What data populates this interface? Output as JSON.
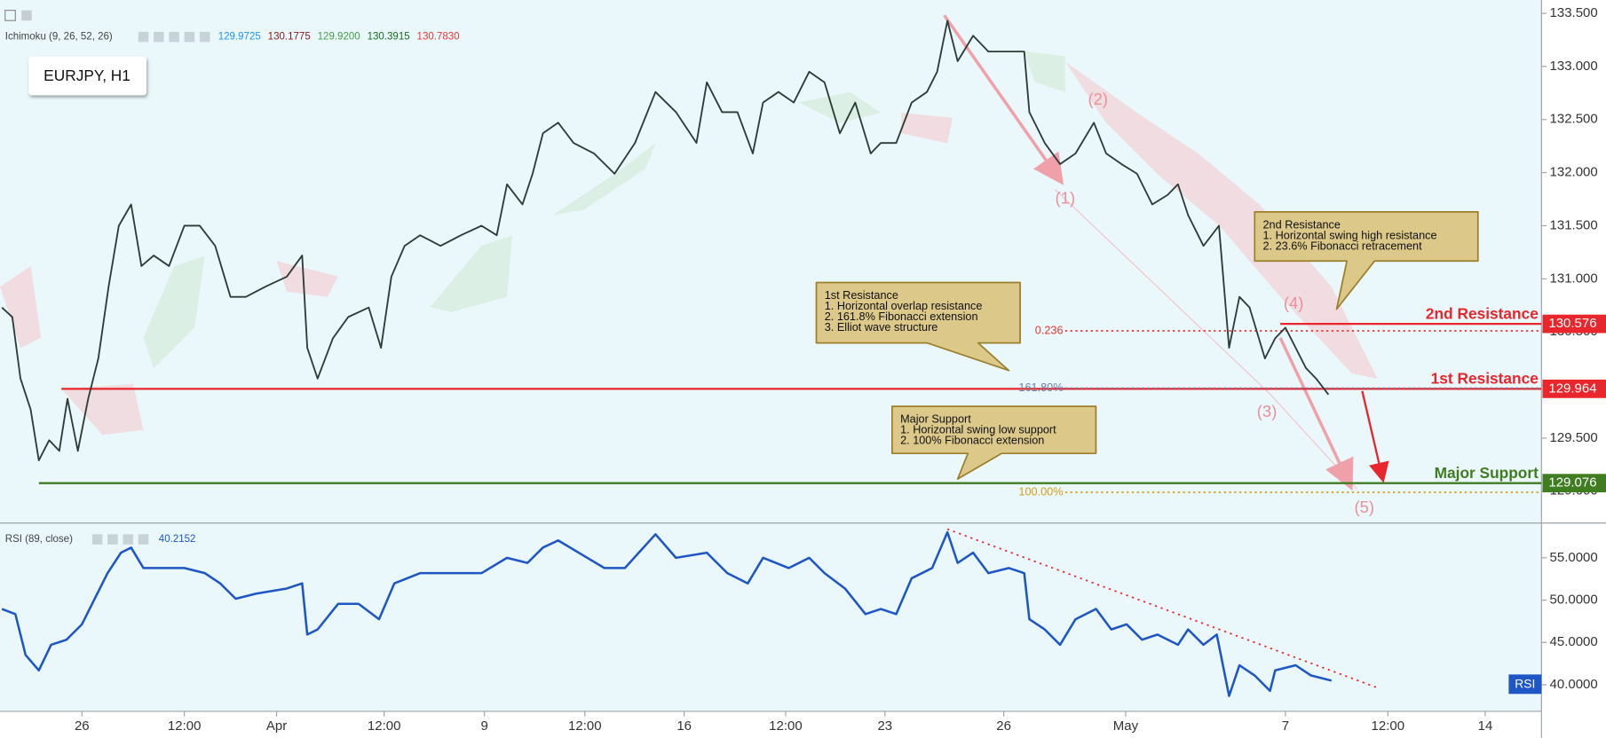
{
  "header": {
    "symbol": "EURJPY, H1"
  },
  "chart_data": [
    {
      "type": "line",
      "indicator": "Ichimoku (9, 26, 52, 26)",
      "indicator_values": [
        "129.9725",
        "130.1775",
        "129.9200",
        "130.3915",
        "130.7830"
      ],
      "indicator_colors": [
        "#2196f3",
        "#8b1a1a",
        "#43a047",
        "#1b6e1b",
        "#e53935"
      ],
      "color": "#2e3b38",
      "x": [
        -48.8,
        -42.5,
        -37.5,
        -31.3,
        -26.3,
        -20,
        -13.8,
        -8.8,
        -2.5,
        3.8,
        10,
        16.3,
        22.5,
        30,
        36.3,
        43.8,
        53.1,
        62.5,
        71.9,
        81.3,
        90.6,
        100,
        112.5,
        125,
        134.4,
        137.5,
        143.8,
        153.1,
        162.5,
        175,
        182.5,
        188.8,
        196.9,
        206.3,
        218.8,
        231.3,
        243.8,
        253.1,
        259.4,
        268.8,
        275,
        281.3,
        290.6,
        300,
        312.5,
        325,
        337.5,
        350,
        362.5,
        375,
        381.3,
        390.6,
        400,
        409.4,
        415.6,
        425,
        434.4,
        443.8,
        453.1,
        462.5,
        471.9,
        481.3,
        487.5,
        496.9,
        506.3,
        515.6,
        521.9,
        528.1,
        534.4,
        543.8,
        553.1,
        565.6,
        575,
        578.1,
        587.5,
        596.9,
        606.3,
        617.5,
        625,
        634.4,
        643.8,
        653.1,
        662.5,
        668.8,
        675,
        684.4,
        693.8,
        700,
        706.3,
        712.5,
        721.9,
        728.1,
        734.4,
        740.6,
        746.9,
        753.1,
        760.6
      ],
      "values": [
        130.73,
        130.64,
        130.06,
        129.77,
        129.29,
        129.48,
        129.38,
        129.87,
        129.38,
        129.87,
        130.25,
        130.93,
        131.5,
        131.7,
        131.12,
        131.22,
        131.12,
        131.5,
        131.5,
        131.31,
        130.83,
        130.83,
        130.93,
        131.02,
        131.22,
        130.35,
        130.06,
        130.44,
        130.64,
        130.73,
        130.35,
        131.02,
        131.31,
        131.41,
        131.31,
        131.41,
        131.5,
        131.41,
        131.89,
        131.7,
        131.99,
        132.37,
        132.47,
        132.28,
        132.18,
        131.99,
        132.28,
        132.76,
        132.57,
        132.28,
        132.85,
        132.57,
        132.57,
        132.18,
        132.66,
        132.76,
        132.66,
        132.95,
        132.85,
        132.37,
        132.66,
        132.18,
        132.28,
        132.28,
        132.66,
        132.76,
        132.95,
        133.43,
        133.05,
        133.29,
        133.14,
        133.14,
        133.14,
        132.57,
        132.28,
        132.08,
        132.18,
        132.47,
        132.18,
        132.08,
        131.99,
        131.7,
        131.79,
        131.89,
        131.6,
        131.31,
        131.5,
        130.35,
        130.83,
        130.73,
        130.25,
        130.44,
        130.54,
        130.35,
        130.16,
        130.06,
        129.91
      ],
      "xlim": [
        -50,
        890
      ],
      "ylim": [
        128.71,
        133.625
      ],
      "yticks": [
        {
          "value": 133.5,
          "label": "133.500"
        },
        {
          "value": 133,
          "label": "133.000"
        },
        {
          "value": 132.5,
          "label": "132.500"
        },
        {
          "value": 132,
          "label": "132.000"
        },
        {
          "value": 131.5,
          "label": "131.500"
        },
        {
          "value": 131,
          "label": "131.000"
        },
        {
          "value": 130.5,
          "label": "130.500"
        },
        {
          "value": 130,
          "label": "130.000"
        },
        {
          "value": 129.5,
          "label": "129.500"
        },
        {
          "value": 129,
          "label": "129.000"
        }
      ],
      "levels": [
        {
          "label": "2nd Resistance",
          "value": 130.576,
          "color": "#e8262b"
        },
        {
          "label": "1st Resistance",
          "value": 129.964,
          "color": "#e8262b"
        },
        {
          "label": "Major Support",
          "value": 129.076,
          "color": "#3f7d20"
        }
      ],
      "fib_levels": [
        {
          "label": "0.236",
          "value": 130.51,
          "color": "#e53935"
        },
        {
          "label": "161.80%",
          "value": 129.97,
          "color": "#6a7fa8"
        },
        {
          "label": "100.00%",
          "value": 128.99,
          "color": "#d4a017"
        }
      ],
      "waves": [
        {
          "label": "(1)",
          "x": 600,
          "y": 131.75
        },
        {
          "label": "(2)",
          "x": 620,
          "y": 132.68
        },
        {
          "label": "(3)",
          "x": 723.1,
          "y": 129.74
        },
        {
          "label": "(4)",
          "x": 739.4,
          "y": 130.76
        },
        {
          "label": "(5)",
          "x": 782.5,
          "y": 128.84
        }
      ],
      "callouts": [
        {
          "lines": [
            "1st Resistance",
            "1. Horizontal overlap resistance",
            "2. 161.8% Fibonacci extension",
            "3. Elliot wave structure"
          ]
        },
        {
          "lines": [
            "2nd Resistance",
            "1. Horizontal swing high resistance",
            "2. 23.6% Fibonacci retracement"
          ]
        },
        {
          "lines": [
            "Major Support",
            "1. Horizontal swing low support",
            "2. 100% Fibonacci extension"
          ]
        }
      ]
    },
    {
      "type": "line",
      "indicator": "RSI (89, close)",
      "last_value": 40.2152,
      "badge": "RSI",
      "color": "#1e56c6",
      "x": [
        -48.8,
        -40.6,
        -34.4,
        -26.3,
        -18.8,
        -9.4,
        0,
        9.4,
        15.6,
        23.8,
        30,
        37.5,
        50,
        62.5,
        75,
        84.4,
        93.8,
        106.3,
        125,
        134.4,
        137.5,
        143.8,
        156.3,
        168.8,
        181.3,
        190.6,
        206.3,
        225,
        243.8,
        259.4,
        271.9,
        281.3,
        290.6,
        303.1,
        318.8,
        331.3,
        350,
        362.5,
        381.3,
        393.8,
        406.3,
        415.6,
        431.3,
        443.8,
        453.1,
        465.6,
        478.1,
        487.5,
        496.9,
        506.3,
        518.8,
        528.1,
        534.4,
        543.8,
        553.1,
        565.6,
        575,
        578.1,
        587.5,
        596.9,
        606.3,
        618.8,
        628.1,
        637.5,
        646.9,
        656.3,
        668.8,
        675,
        684.4,
        692.5,
        700,
        706.3,
        715.6,
        725,
        728.1,
        740.6,
        750,
        762.5
      ],
      "values": [
        48.95,
        48.35,
        43.51,
        41.7,
        44.72,
        45.33,
        47.14,
        50.77,
        53.19,
        55.6,
        56.21,
        53.79,
        53.79,
        53.79,
        53.19,
        51.98,
        50.16,
        50.77,
        51.37,
        51.98,
        45.93,
        46.54,
        49.56,
        49.56,
        47.74,
        51.98,
        53.19,
        53.19,
        53.19,
        55,
        54.4,
        56.21,
        57.06,
        55.6,
        53.79,
        53.79,
        57.78,
        55,
        55.6,
        53.19,
        51.98,
        55,
        53.79,
        55,
        53.19,
        51.37,
        48.35,
        48.95,
        48.35,
        52.58,
        53.79,
        58.02,
        54.4,
        55.6,
        53.19,
        53.79,
        53.19,
        47.74,
        46.54,
        44.72,
        47.74,
        48.95,
        46.54,
        47.14,
        45.33,
        45.93,
        44.72,
        46.54,
        44.72,
        45.93,
        38.68,
        42.3,
        41.09,
        39.28,
        41.7,
        42.3,
        41.09,
        40.49
      ],
      "xlim": [
        -50,
        890
      ],
      "xticks": [
        {
          "value": 0,
          "label": "26"
        },
        {
          "value": 62.5,
          "label": "12:00"
        },
        {
          "value": 118.8,
          "label": "Apr"
        },
        {
          "value": 184.4,
          "label": "12:00"
        },
        {
          "value": 245.6,
          "label": "9"
        },
        {
          "value": 306.9,
          "label": "12:00"
        },
        {
          "value": 367.5,
          "label": "16"
        },
        {
          "value": 429.4,
          "label": "12:00"
        },
        {
          "value": 490,
          "label": "23"
        },
        {
          "value": 562.5,
          "label": "26"
        },
        {
          "value": 636.9,
          "label": "May"
        },
        {
          "value": 734.4,
          "label": "7"
        },
        {
          "value": 796.9,
          "label": "12:00"
        },
        {
          "value": 856.3,
          "label": "14"
        }
      ],
      "ylim": [
        36.86,
        58.87
      ],
      "yticks": [
        {
          "value": 55,
          "label": "55.0000"
        },
        {
          "value": 50,
          "label": "50.0000"
        },
        {
          "value": 45,
          "label": "45.0000"
        },
        {
          "value": 40,
          "label": "40.0000"
        }
      ]
    }
  ]
}
